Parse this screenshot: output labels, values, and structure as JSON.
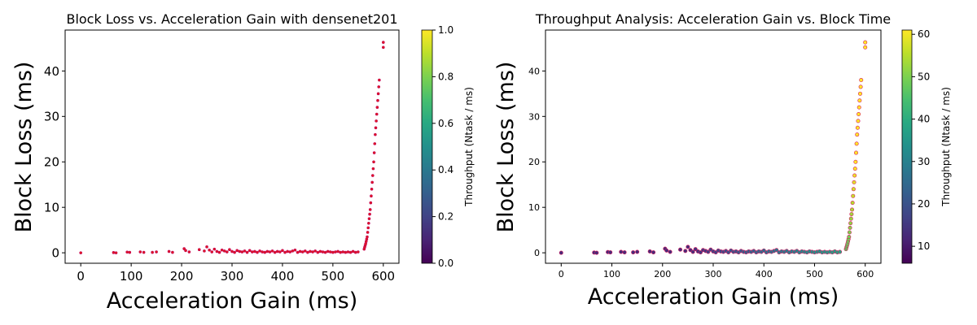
{
  "chart_data": [
    {
      "type": "scatter",
      "title": "Block Loss vs. Acceleration Gain with densenet201",
      "xlabel": "Acceleration Gain (ms)",
      "ylabel": "Block Loss (ms)",
      "xlim": [
        -31,
        631
      ],
      "ylim": [
        -2.3,
        49
      ],
      "xticks": [
        0,
        100,
        200,
        300,
        400,
        500,
        600
      ],
      "yticks": [
        0,
        10,
        20,
        30,
        40
      ],
      "marker_color": "#e41a1c",
      "marker_edge": "#c0005a",
      "colorbar": {
        "label": "Throughput (Ntask / ms)",
        "min": 0.0,
        "max": 1.0,
        "ticks": [
          "0.0",
          "0.2",
          "0.4",
          "0.6",
          "0.8",
          "1.0"
        ],
        "colormap": "viridis"
      },
      "points": []
    },
    {
      "type": "scatter",
      "title": "Throughput Analysis: Acceleration Gain vs. Block Time",
      "xlabel": "Acceleration Gain (ms)",
      "ylabel": "Block Loss (ms)",
      "xlim": [
        -31,
        631
      ],
      "ylim": [
        -2.3,
        49
      ],
      "xticks": [
        0,
        100,
        200,
        300,
        400,
        500,
        600
      ],
      "yticks": [
        0,
        10,
        20,
        30,
        40
      ],
      "colorbar": {
        "label": "Throughput (Ntask / ms)",
        "min": 6,
        "max": 61,
        "ticks": [
          "10",
          "20",
          "30",
          "40",
          "50",
          "60"
        ],
        "colormap": "viridis"
      },
      "points": []
    }
  ],
  "series_data": [
    [
      0,
      0.0
    ],
    [
      65,
      0.05
    ],
    [
      70,
      0.0
    ],
    [
      92,
      0.15
    ],
    [
      97,
      0.1
    ],
    [
      118,
      0.2
    ],
    [
      125,
      0.1
    ],
    [
      142,
      0.1
    ],
    [
      150,
      0.2
    ],
    [
      175,
      0.3
    ],
    [
      182,
      0.1
    ],
    [
      205,
      0.9
    ],
    [
      208,
      0.5
    ],
    [
      215,
      0.2
    ],
    [
      235,
      0.7
    ],
    [
      245,
      0.4
    ],
    [
      250,
      1.3
    ],
    [
      255,
      0.6
    ],
    [
      260,
      0.2
    ],
    [
      265,
      0.8
    ],
    [
      270,
      0.3
    ],
    [
      275,
      0.1
    ],
    [
      280,
      0.6
    ],
    [
      285,
      0.4
    ],
    [
      290,
      0.2
    ],
    [
      295,
      0.7
    ],
    [
      300,
      0.3
    ],
    [
      305,
      0.1
    ],
    [
      310,
      0.5
    ],
    [
      315,
      0.3
    ],
    [
      320,
      0.2
    ],
    [
      325,
      0.4
    ],
    [
      330,
      0.1
    ],
    [
      335,
      0.5
    ],
    [
      340,
      0.2
    ],
    [
      345,
      0.3
    ],
    [
      350,
      0.1
    ],
    [
      355,
      0.4
    ],
    [
      360,
      0.2
    ],
    [
      365,
      0.1
    ],
    [
      370,
      0.3
    ],
    [
      375,
      0.2
    ],
    [
      380,
      0.4
    ],
    [
      385,
      0.1
    ],
    [
      390,
      0.3
    ],
    [
      395,
      0.2
    ],
    [
      400,
      0.5
    ],
    [
      405,
      0.1
    ],
    [
      410,
      0.3
    ],
    [
      415,
      0.2
    ],
    [
      420,
      0.4
    ],
    [
      425,
      0.6
    ],
    [
      430,
      0.1
    ],
    [
      435,
      0.3
    ],
    [
      440,
      0.2
    ],
    [
      445,
      0.4
    ],
    [
      450,
      0.1
    ],
    [
      455,
      0.3
    ],
    [
      460,
      0.2
    ],
    [
      465,
      0.4
    ],
    [
      470,
      0.1
    ],
    [
      475,
      0.3
    ],
    [
      480,
      0.2
    ],
    [
      485,
      0.1
    ],
    [
      490,
      0.3
    ],
    [
      495,
      0.2
    ],
    [
      500,
      0.1
    ],
    [
      505,
      0.2
    ],
    [
      510,
      0.3
    ],
    [
      515,
      0.1
    ],
    [
      520,
      0.2
    ],
    [
      525,
      0.1
    ],
    [
      530,
      0.2
    ],
    [
      535,
      0.1
    ],
    [
      540,
      0.3
    ],
    [
      545,
      0.1
    ],
    [
      550,
      0.2
    ],
    [
      562,
      0.8
    ],
    [
      563,
      1.2
    ],
    [
      564,
      1.6
    ],
    [
      565,
      2.0
    ],
    [
      566,
      2.5
    ],
    [
      567,
      3.0
    ],
    [
      568,
      3.5
    ],
    [
      569,
      4.5
    ],
    [
      570,
      5.5
    ],
    [
      571,
      6.5
    ],
    [
      572,
      7.5
    ],
    [
      573,
      8.5
    ],
    [
      574,
      9.5
    ],
    [
      575,
      11
    ],
    [
      576,
      12.5
    ],
    [
      577,
      14
    ],
    [
      578,
      15.5
    ],
    [
      579,
      17
    ],
    [
      580,
      18.5
    ],
    [
      581,
      20
    ],
    [
      582,
      22
    ],
    [
      583,
      24
    ],
    [
      584,
      26
    ],
    [
      585,
      27.5
    ],
    [
      586,
      29
    ],
    [
      587,
      30.5
    ],
    [
      588,
      32
    ],
    [
      589,
      33.5
    ],
    [
      590,
      35
    ],
    [
      591,
      36.5
    ],
    [
      592,
      38
    ],
    [
      600,
      45.2
    ],
    [
      600,
      46.3
    ]
  ]
}
